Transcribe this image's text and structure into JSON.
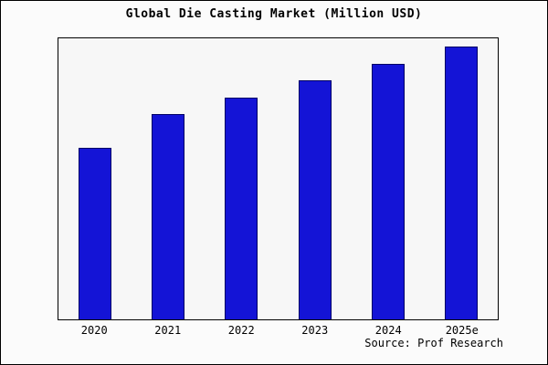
{
  "chart_data": {
    "type": "bar",
    "title": "Global Die Casting Market (Million USD)",
    "categories": [
      "2020",
      "2021",
      "2022",
      "2023",
      "2024",
      "2025e"
    ],
    "values": [
      61,
      73,
      79,
      85,
      91,
      97
    ],
    "xlabel": "",
    "ylabel": "",
    "ylim": [
      0,
      100
    ],
    "grid": false,
    "legend": "none",
    "bar_color": "#1414d6",
    "bar_border_color": "#000066",
    "source_text": "Source: Prof Research"
  }
}
